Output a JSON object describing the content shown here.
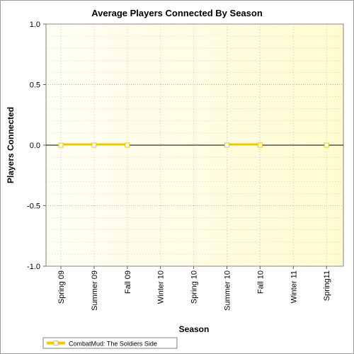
{
  "chart_data": {
    "type": "line",
    "title": "Average Players Connected By Season",
    "xlabel": "Season",
    "ylabel": "Players Connected",
    "categories": [
      "Spring 09",
      "Summer 09",
      "Fall 09",
      "Winter 10",
      "Spring 10",
      "Summer 10",
      "Fall 10",
      "Winter 11",
      "Spring11"
    ],
    "ylim": [
      -1.0,
      1.0
    ],
    "yticks": [
      "1.0",
      "0.5",
      "0.0",
      "-0.5",
      "-1.0"
    ],
    "ytick_values": [
      1.0,
      0.5,
      0.0,
      -0.5,
      -1.0
    ],
    "grid": true,
    "legend_position": "bottom-left",
    "series": [
      {
        "name": "CombatMud: The Soldiers Side",
        "color": "#f0c800",
        "values": [
          0,
          0,
          0,
          null,
          null,
          0,
          0,
          null,
          0
        ]
      }
    ]
  }
}
